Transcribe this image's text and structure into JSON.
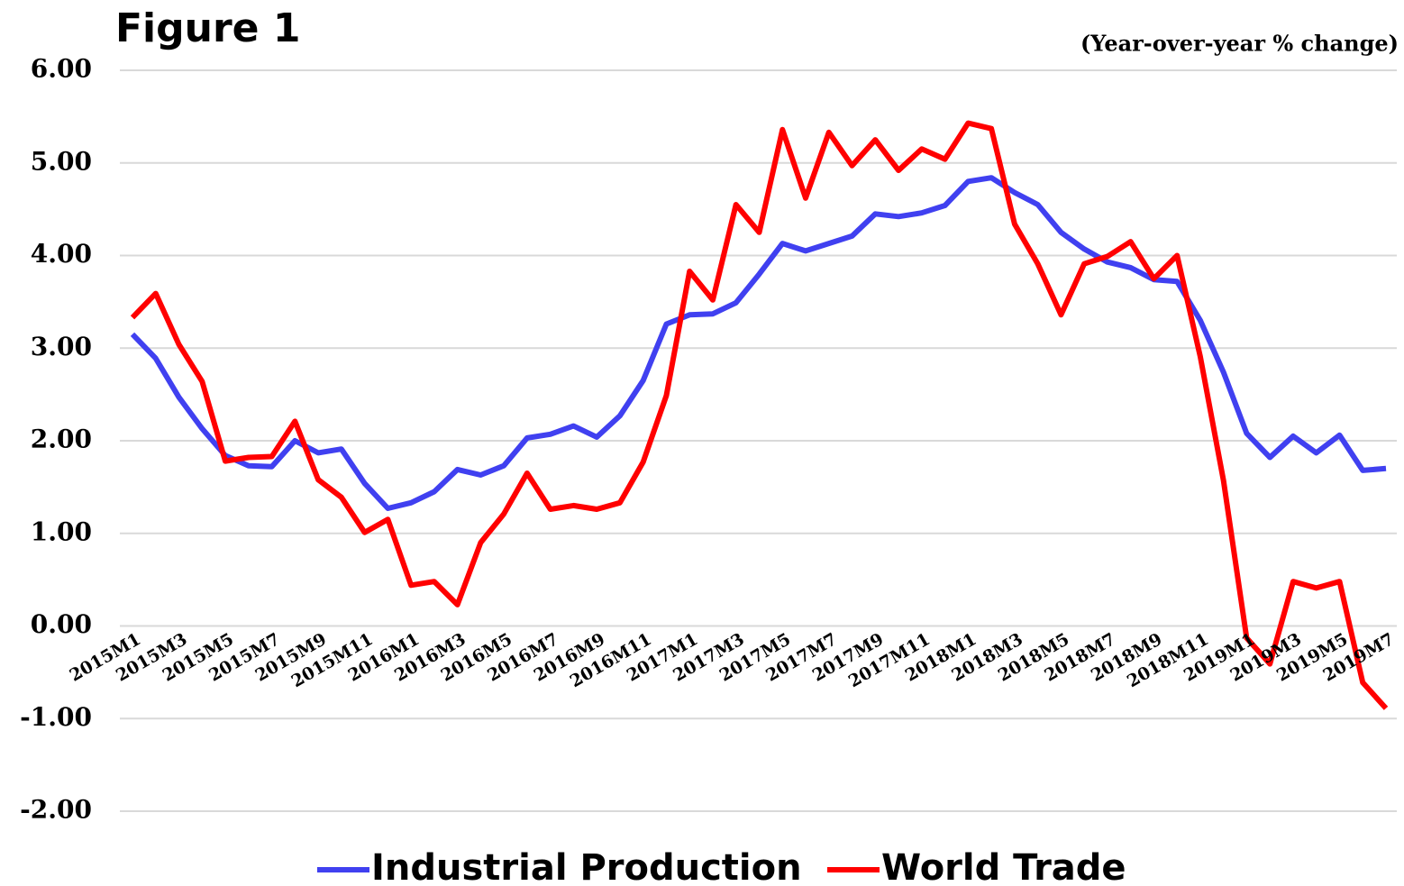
{
  "chart_data": {
    "type": "line",
    "title": "Figure 1",
    "subtitle": "(Year-over-year % change)",
    "categories": [
      "2015M1",
      null,
      "2015M3",
      null,
      "2015M5",
      null,
      "2015M7",
      null,
      "2015M9",
      null,
      "2015M11",
      null,
      "2016M1",
      null,
      "2016M3",
      null,
      "2016M5",
      null,
      "2016M7",
      null,
      "2016M9",
      null,
      "2016M11",
      null,
      "2017M1",
      null,
      "2017M3",
      null,
      "2017M5",
      null,
      "2017M7",
      null,
      "2017M9",
      null,
      "2017M11",
      null,
      "2018M1",
      null,
      "2018M3",
      null,
      "2018M5",
      null,
      "2018M7",
      null,
      "2018M9",
      null,
      "2018M11",
      null,
      "2019M1",
      null,
      "2019M3",
      null,
      "2019M5",
      null,
      "2019M7"
    ],
    "series": [
      {
        "name": "Industrial Production",
        "color": "#4040f0",
        "values": [
          3.15,
          2.89,
          2.47,
          2.13,
          1.84,
          1.73,
          1.72,
          2.0,
          1.87,
          1.91,
          1.54,
          1.27,
          1.33,
          1.45,
          1.69,
          1.63,
          1.73,
          2.03,
          2.07,
          2.16,
          2.04,
          2.27,
          2.65,
          3.26,
          3.36,
          3.37,
          3.49,
          3.8,
          4.13,
          4.05,
          4.13,
          4.21,
          4.45,
          4.42,
          4.46,
          4.54,
          4.8,
          4.84,
          4.68,
          4.55,
          4.25,
          4.07,
          3.93,
          3.87,
          3.74,
          3.72,
          3.3,
          2.74,
          2.08,
          1.82,
          2.05,
          1.87,
          2.06,
          1.68,
          1.7
        ]
      },
      {
        "name": "World Trade",
        "color": "#ff0000",
        "values": [
          3.33,
          3.59,
          3.04,
          2.64,
          1.78,
          1.82,
          1.83,
          2.21,
          1.58,
          1.39,
          1.01,
          1.15,
          0.44,
          0.48,
          0.23,
          0.9,
          1.21,
          1.65,
          1.26,
          1.3,
          1.26,
          1.33,
          1.77,
          2.49,
          3.83,
          3.52,
          4.55,
          4.25,
          5.36,
          4.62,
          5.33,
          4.97,
          5.25,
          4.92,
          5.15,
          5.04,
          5.43,
          5.37,
          4.34,
          3.91,
          3.36,
          3.91,
          3.99,
          4.15,
          3.75,
          4.0,
          2.91,
          1.57,
          -0.13,
          -0.41,
          0.48,
          0.41,
          0.48,
          -0.61,
          -0.89
        ]
      }
    ],
    "ylim": [
      -2,
      6
    ],
    "yticks": [
      {
        "value": -2,
        "label": "-2.00"
      },
      {
        "value": -1,
        "label": "-1.00"
      },
      {
        "value": 0,
        "label": "0.00"
      },
      {
        "value": 1,
        "label": "1.00"
      },
      {
        "value": 2,
        "label": "2.00"
      },
      {
        "value": 3,
        "label": "3.00"
      },
      {
        "value": 4,
        "label": "4.00"
      },
      {
        "value": 5,
        "label": "5.00"
      },
      {
        "value": 6,
        "label": "6.00"
      }
    ],
    "grid": true,
    "legend": "bottom"
  }
}
